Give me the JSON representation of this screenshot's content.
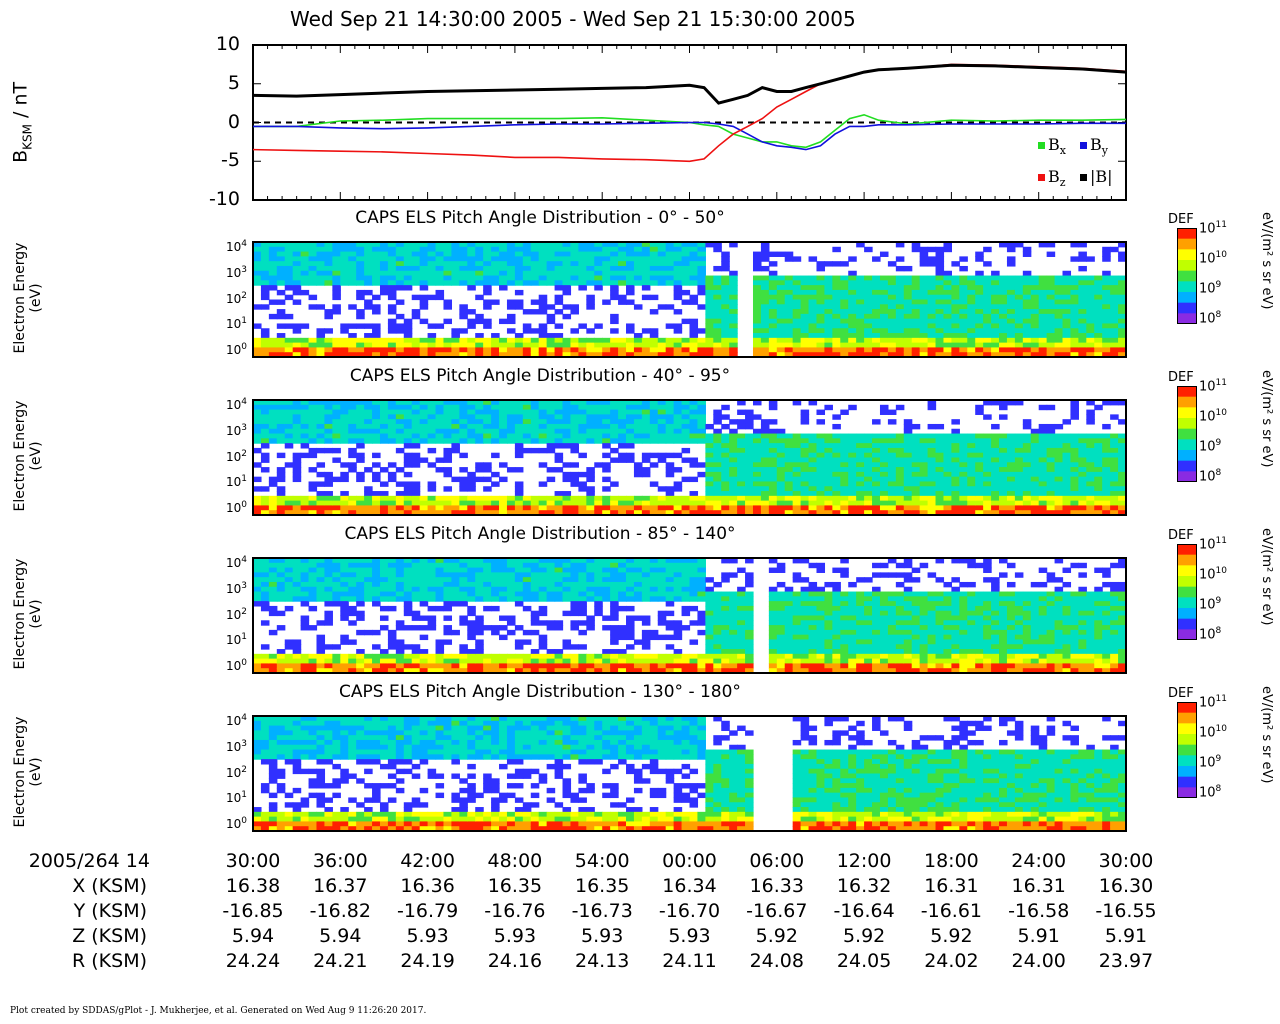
{
  "page_title": "Wed Sep 21 14:30:00 2005 - Wed Sep 21 15:30:00 2005",
  "footer": "Plot created by SDDAS/gPlot - J. Mukherjee, et al.  Generated on Wed Aug 9 11:26:20 2017.",
  "colors": {
    "bx": "#22dd22",
    "by": "#1111dd",
    "bz": "#ee1111",
    "bmag": "#000000"
  },
  "chart_data": [
    {
      "type": "line",
      "ylabel_main": "B",
      "ylabel_sub": "KSM",
      "ylabel_unit": " / nT",
      "ylim": [
        -10,
        10
      ],
      "yticks": [
        "10",
        "5",
        "0",
        "-5",
        "-10"
      ],
      "ytick_values": [
        10,
        5,
        0,
        -5,
        -10
      ],
      "x": [
        0,
        3,
        6,
        9,
        12,
        15,
        18,
        21,
        24,
        27,
        30,
        31,
        32,
        33,
        34,
        35,
        36,
        37,
        38,
        39,
        40,
        41,
        42,
        43,
        45,
        48,
        51,
        54,
        57,
        60
      ],
      "legend": [
        {
          "key": "bx",
          "main": "B",
          "sub": "x"
        },
        {
          "key": "by",
          "main": "B",
          "sub": "y"
        },
        {
          "key": "bz",
          "main": "B",
          "sub": "z"
        },
        {
          "key": "bmag",
          "main": "|B|",
          "sub": ""
        }
      ],
      "series": [
        {
          "key": "bx",
          "values": [
            -0.5,
            -0.5,
            0.2,
            0.3,
            0.5,
            0.5,
            0.5,
            0.5,
            0.6,
            0.3,
            0,
            -0.3,
            -0.5,
            -1.5,
            -2.0,
            -2.5,
            -2.5,
            -3.0,
            -3.2,
            -2.5,
            -1.0,
            0.5,
            1.0,
            0.3,
            -0.2,
            0.3,
            0.2,
            0.3,
            0.3,
            0.4
          ]
        },
        {
          "key": "by",
          "values": [
            -0.5,
            -0.5,
            -0.7,
            -0.8,
            -0.7,
            -0.5,
            -0.3,
            -0.2,
            -0.2,
            -0.1,
            0,
            0,
            -0.2,
            -0.5,
            -1.5,
            -2.5,
            -3.0,
            -3.2,
            -3.5,
            -3.0,
            -1.5,
            -0.5,
            -0.5,
            -0.3,
            -0.3,
            -0.2,
            -0.2,
            -0.2,
            -0.1,
            -0.1
          ]
        },
        {
          "key": "bz",
          "values": [
            -3.5,
            -3.6,
            -3.7,
            -3.8,
            -4.0,
            -4.2,
            -4.5,
            -4.5,
            -4.7,
            -4.8,
            -5.0,
            -4.7,
            -3.0,
            -1.5,
            -0.5,
            0.5,
            2.0,
            3.0,
            4.0,
            5.0,
            5.5,
            6.0,
            6.5,
            6.8,
            7.0,
            7.5,
            7.4,
            7.2,
            7.0,
            6.6
          ]
        },
        {
          "key": "bmag",
          "values": [
            3.5,
            3.4,
            3.6,
            3.8,
            4.0,
            4.1,
            4.2,
            4.3,
            4.4,
            4.5,
            4.8,
            4.5,
            2.5,
            3.0,
            3.5,
            4.5,
            4.0,
            4.0,
            4.5,
            5.0,
            5.5,
            6.0,
            6.5,
            6.8,
            7.0,
            7.4,
            7.3,
            7.1,
            6.9,
            6.5
          ]
        }
      ]
    },
    {
      "type": "heatmap",
      "title": "CAPS ELS Pitch Angle Distribution - 0° - 50°",
      "ylabel": "Electron Energy",
      "ylabel_unit": "(eV)",
      "yticks": [
        {
          "base": "10",
          "exp": "4"
        },
        {
          "base": "10",
          "exp": "3"
        },
        {
          "base": "10",
          "exp": "2"
        },
        {
          "base": "10",
          "exp": "1"
        },
        {
          "base": "10",
          "exp": "0"
        }
      ],
      "gaps_minutes": [
        [
          33,
          34.3
        ]
      ]
    },
    {
      "type": "heatmap",
      "title": "CAPS ELS Pitch Angle Distribution - 40° - 95°",
      "ylabel": "Electron Energy",
      "ylabel_unit": "(eV)",
      "yticks": [
        {
          "base": "10",
          "exp": "4"
        },
        {
          "base": "10",
          "exp": "3"
        },
        {
          "base": "10",
          "exp": "2"
        },
        {
          "base": "10",
          "exp": "1"
        },
        {
          "base": "10",
          "exp": "0"
        }
      ],
      "gaps_minutes": []
    },
    {
      "type": "heatmap",
      "title": "CAPS ELS Pitch Angle Distribution - 85° - 140°",
      "ylabel": "Electron Energy",
      "ylabel_unit": "(eV)",
      "yticks": [
        {
          "base": "10",
          "exp": "4"
        },
        {
          "base": "10",
          "exp": "3"
        },
        {
          "base": "10",
          "exp": "2"
        },
        {
          "base": "10",
          "exp": "1"
        },
        {
          "base": "10",
          "exp": "0"
        }
      ],
      "gaps_minutes": [
        [
          34.3,
          35
        ]
      ]
    },
    {
      "type": "heatmap",
      "title": "CAPS ELS Pitch Angle Distribution - 130° - 180°",
      "ylabel": "Electron Energy",
      "ylabel_unit": "(eV)",
      "yticks": [
        {
          "base": "10",
          "exp": "4"
        },
        {
          "base": "10",
          "exp": "3"
        },
        {
          "base": "10",
          "exp": "2"
        },
        {
          "base": "10",
          "exp": "1"
        },
        {
          "base": "10",
          "exp": "0"
        }
      ],
      "gaps_minutes": [
        [
          34,
          37
        ]
      ]
    }
  ],
  "colorbar": {
    "label": "DEF",
    "unit_text": "eV/(m² s sr eV)",
    "ticks": [
      {
        "base": "10",
        "exp": "11"
      },
      {
        "base": "10",
        "exp": "10"
      },
      {
        "base": "10",
        "exp": "9"
      },
      {
        "base": "10",
        "exp": "8"
      }
    ]
  },
  "x_axis": {
    "date_label": "2005/264 14",
    "ticks": [
      "30:00",
      "36:00",
      "42:00",
      "48:00",
      "54:00",
      "00:00",
      "06:00",
      "12:00",
      "18:00",
      "24:00",
      "30:00"
    ]
  },
  "ephemeris": [
    {
      "label": "X (KSM)",
      "values": [
        "16.38",
        "16.37",
        "16.36",
        "16.35",
        "16.35",
        "16.34",
        "16.33",
        "16.32",
        "16.31",
        "16.31",
        "16.30"
      ]
    },
    {
      "label": "Y (KSM)",
      "values": [
        "-16.85",
        "-16.82",
        "-16.79",
        "-16.76",
        "-16.73",
        "-16.70",
        "-16.67",
        "-16.64",
        "-16.61",
        "-16.58",
        "-16.55"
      ]
    },
    {
      "label": "Z (KSM)",
      "values": [
        "5.94",
        "5.94",
        "5.93",
        "5.93",
        "5.93",
        "5.93",
        "5.92",
        "5.92",
        "5.92",
        "5.91",
        "5.91"
      ]
    },
    {
      "label": "R (KSM)",
      "values": [
        "24.24",
        "24.21",
        "24.19",
        "24.16",
        "24.13",
        "24.11",
        "24.08",
        "24.05",
        "24.02",
        "24.00",
        "23.97"
      ]
    }
  ]
}
